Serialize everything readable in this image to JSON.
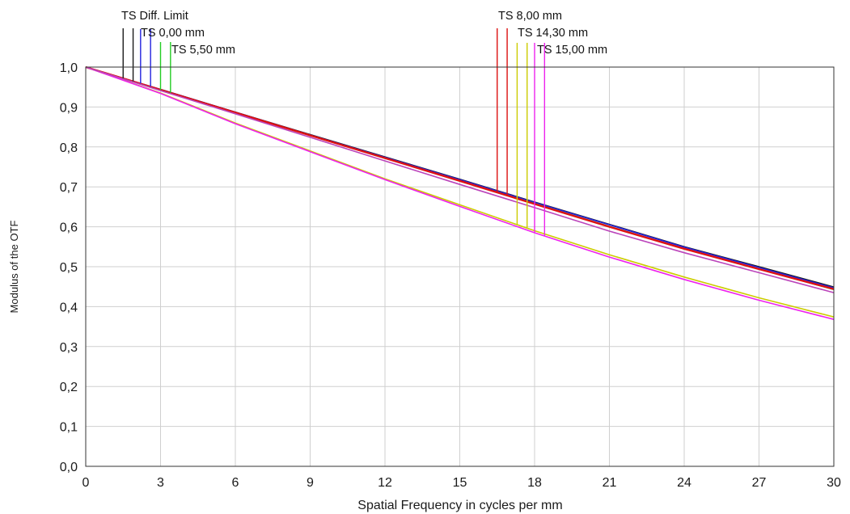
{
  "colors": {
    "title": "#2a64b4",
    "grid": "#cfcfcf",
    "frame": "#333333"
  },
  "chart_data": {
    "type": "line",
    "xlabel": "Spatial Frequency in cycles per mm",
    "ylabel": "Modulus of the OTF",
    "xlim": [
      0,
      30
    ],
    "ylim": [
      0,
      1
    ],
    "xticks": [
      0,
      3,
      6,
      9,
      12,
      15,
      18,
      21,
      24,
      27,
      30
    ],
    "xtick_labels": [
      "0",
      "3",
      "6",
      "9",
      "12",
      "15",
      "18",
      "21",
      "24",
      "27",
      "30"
    ],
    "yticks": [
      0.0,
      0.1,
      0.2,
      0.3,
      0.4,
      0.5,
      0.6,
      0.7,
      0.8,
      0.9,
      1.0
    ],
    "ytick_labels": [
      "0,0",
      "0,1",
      "0,2",
      "0,3",
      "0,4",
      "0,5",
      "0,6",
      "0,7",
      "0,8",
      "0,9",
      "1,0"
    ],
    "grid": true,
    "series": [
      {
        "name": "TS Diff. Limit",
        "color": "#1a1a1a",
        "x": [
          0,
          3,
          6,
          9,
          12,
          15,
          18,
          21,
          24,
          27,
          30
        ],
        "y": [
          1.0,
          0.944,
          0.887,
          0.831,
          0.775,
          0.719,
          0.662,
          0.606,
          0.55,
          0.5,
          0.449
        ],
        "marker_x": [
          1.5,
          1.9
        ]
      },
      {
        "name": "TS 0,00 mm",
        "color": "#2222dd",
        "x": [
          0,
          3,
          6,
          9,
          12,
          15,
          18,
          21,
          24,
          27,
          30
        ],
        "y": [
          1.0,
          0.944,
          0.887,
          0.83,
          0.774,
          0.718,
          0.661,
          0.605,
          0.549,
          0.498,
          0.447
        ],
        "marker_x": [
          2.2,
          2.6
        ]
      },
      {
        "name": "TS 5,50 mm",
        "color": "#22cc22",
        "x": [
          0,
          3,
          6,
          9,
          12,
          15,
          18,
          21,
          24,
          27,
          30
        ],
        "y": [
          1.0,
          0.943,
          0.886,
          0.829,
          0.772,
          0.715,
          0.658,
          0.601,
          0.545,
          0.494,
          0.443
        ],
        "marker_x": [
          3.0,
          3.4
        ]
      },
      {
        "name": "TS 8,00 mm",
        "color": "#dd1111",
        "x": [
          0,
          3,
          6,
          9,
          12,
          15,
          18,
          21,
          24,
          27,
          30
        ],
        "y": [
          1.0,
          0.943,
          0.886,
          0.829,
          0.772,
          0.715,
          0.657,
          0.6,
          0.545,
          0.494,
          0.444
        ],
        "marker_x": [
          16.5,
          16.9
        ]
      },
      {
        "name": "TS 14,30 mm",
        "color": "#cccc00",
        "x": [
          0,
          3,
          6,
          9,
          12,
          15,
          18,
          21,
          24,
          27,
          30
        ],
        "y": [
          1.0,
          0.935,
          0.86,
          0.79,
          0.72,
          0.655,
          0.59,
          0.53,
          0.474,
          0.422,
          0.374
        ],
        "marker_x": [
          17.3,
          17.7
        ]
      },
      {
        "name": "TS 15,00 mm",
        "color": "#ee22ee",
        "x": [
          0,
          3,
          6,
          9,
          12,
          15,
          18,
          21,
          24,
          27,
          30
        ],
        "y": [
          1.0,
          0.934,
          0.858,
          0.788,
          0.718,
          0.651,
          0.585,
          0.524,
          0.468,
          0.416,
          0.368
        ],
        "marker_x": [
          18.0,
          18.4
        ]
      },
      {
        "name": "",
        "color": "#bb44bb",
        "x": [
          0,
          3,
          6,
          9,
          12,
          15,
          18,
          21,
          24,
          27,
          30
        ],
        "y": [
          1.0,
          0.941,
          0.883,
          0.824,
          0.765,
          0.706,
          0.648,
          0.589,
          0.535,
          0.485,
          0.435
        ],
        "marker_x": []
      }
    ],
    "legend_labels": [
      {
        "text": "TS Diff. Limit",
        "series": 0
      },
      {
        "text": "TS 0,00 mm",
        "series": 1
      },
      {
        "text": "TS 5,50 mm",
        "series": 2
      },
      {
        "text": "TS 8,00 mm",
        "series": 3
      },
      {
        "text": "TS 14,30 mm",
        "series": 4
      },
      {
        "text": "TS 15,00 mm",
        "series": 5
      }
    ]
  }
}
